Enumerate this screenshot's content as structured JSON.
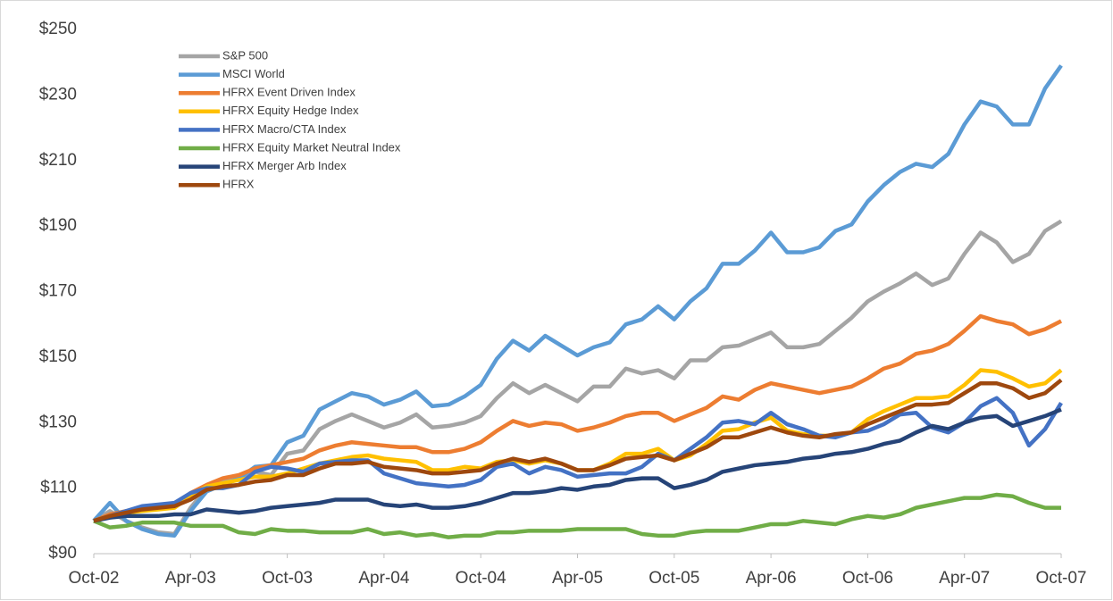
{
  "chart_data": {
    "type": "line",
    "categories": [
      "Oct-02",
      null,
      null,
      null,
      null,
      null,
      "Apr-03",
      null,
      null,
      null,
      null,
      null,
      "Oct-03",
      null,
      null,
      null,
      null,
      null,
      "Apr-04",
      null,
      null,
      null,
      null,
      null,
      "Oct-04",
      null,
      null,
      null,
      null,
      null,
      "Apr-05",
      null,
      null,
      null,
      null,
      null,
      "Oct-05",
      null,
      null,
      null,
      null,
      null,
      "Apr-06",
      null,
      null,
      null,
      null,
      null,
      "Oct-06",
      null,
      null,
      null,
      null,
      null,
      "Apr-07",
      null,
      null,
      null,
      null,
      null,
      "Oct-07"
    ],
    "ylim": [
      90,
      250
    ],
    "yticks": [
      {
        "value": 90,
        "label": "$90"
      },
      {
        "value": 110,
        "label": "$110"
      },
      {
        "value": 130,
        "label": "$130"
      },
      {
        "value": 150,
        "label": "$150"
      },
      {
        "value": 170,
        "label": "$170"
      },
      {
        "value": 190,
        "label": "$190"
      },
      {
        "value": 210,
        "label": "$210"
      },
      {
        "value": 230,
        "label": "$230"
      },
      {
        "value": 250,
        "label": "$250"
      }
    ],
    "grid": false,
    "legend": "upper left",
    "series": [
      {
        "name": "S&P 500",
        "color": "#a5a5a5",
        "values": [
          100,
          103,
          100,
          98,
          96.5,
          96,
          104,
          110,
          112,
          113,
          115,
          114,
          120.5,
          121.5,
          128,
          130.5,
          132.5,
          130.5,
          128.5,
          130,
          132.5,
          128.5,
          129,
          130,
          132,
          137.5,
          142,
          139,
          141.5,
          139,
          136.5,
          141,
          141,
          146.5,
          145,
          146,
          143.5,
          149,
          149,
          153,
          153.5,
          155.5,
          157.5,
          153,
          153,
          154,
          158,
          162,
          167,
          170,
          172.5,
          175.5,
          172,
          174,
          181.5,
          188,
          185,
          179,
          181.5,
          188.5,
          191.5
        ]
      },
      {
        "name": "MSCI World",
        "color": "#5b9bd5",
        "values": [
          100,
          105.5,
          100,
          97.5,
          96,
          95.5,
          103,
          109,
          111,
          113,
          116.5,
          117,
          124,
          126,
          134,
          136.5,
          139,
          138,
          135.5,
          137,
          139.5,
          135,
          135.5,
          138,
          141.5,
          149.5,
          155,
          152,
          156.5,
          153.5,
          150.5,
          153,
          154.5,
          160,
          161.5,
          165.5,
          161.5,
          167,
          171,
          178.5,
          178.5,
          182.5,
          188,
          182,
          182,
          183.5,
          188.5,
          190.5,
          197.5,
          202.5,
          206.5,
          209,
          208,
          212,
          221,
          228,
          226.5,
          221,
          221,
          232,
          239
        ]
      },
      {
        "name": "HFRX Event Driven Index",
        "color": "#ed7d31",
        "values": [
          100,
          102,
          103,
          103.5,
          104,
          104.5,
          108.5,
          111,
          113,
          114,
          116,
          117,
          118,
          119,
          121.5,
          123,
          124,
          123.5,
          123,
          122.5,
          122.5,
          121,
          121,
          122,
          124,
          127.5,
          130.5,
          129,
          130,
          129.5,
          127.5,
          128.5,
          130,
          132,
          133,
          133,
          130.5,
          132.5,
          134.5,
          138,
          137,
          140,
          142,
          141,
          140,
          139,
          140,
          141,
          143.5,
          146.5,
          148,
          151,
          152,
          154,
          158,
          162.5,
          161,
          160,
          157,
          158.5,
          161
        ]
      },
      {
        "name": "HFRX Equity Hedge Index",
        "color": "#ffc000",
        "values": [
          100,
          101.5,
          102.5,
          103,
          103.5,
          104,
          107.5,
          110.5,
          111.5,
          112.5,
          113.5,
          113.5,
          114.5,
          116,
          117.5,
          118.5,
          119.5,
          120,
          119,
          118.5,
          118,
          115.5,
          115.5,
          116.5,
          116,
          118,
          118.5,
          117.5,
          118.5,
          117.5,
          115.5,
          115.5,
          117.5,
          120.5,
          120.5,
          122,
          118.5,
          120,
          123.5,
          127.5,
          128,
          130,
          131.5,
          127.5,
          126.5,
          126,
          126,
          127,
          131,
          133.5,
          135.5,
          137.5,
          137.5,
          138,
          141.5,
          146,
          145.5,
          143.5,
          141,
          142,
          146
        ]
      },
      {
        "name": "HFRX Macro/CTA Index",
        "color": "#4472c4",
        "values": [
          100,
          101.5,
          103,
          104.5,
          105,
          105.5,
          108.5,
          110,
          110,
          111,
          115,
          116.5,
          116,
          115,
          117.5,
          118,
          118.5,
          118.5,
          114.5,
          113,
          111.5,
          111,
          110.5,
          111,
          112.5,
          116.5,
          117.5,
          114.5,
          116.5,
          115.5,
          113.5,
          114,
          114.5,
          114.5,
          116.5,
          120.5,
          118.5,
          122,
          125.5,
          130,
          130.5,
          129.5,
          133,
          129.5,
          128,
          126,
          125.5,
          127,
          127.5,
          129.5,
          132.5,
          133,
          128.5,
          127,
          130,
          135,
          137.5,
          133,
          123,
          128,
          136
        ]
      },
      {
        "name": "HFRX Equity Market Neutral Index",
        "color": "#70ad47",
        "values": [
          100,
          98,
          98.5,
          99.5,
          99.5,
          99.5,
          98.5,
          98.5,
          98.5,
          96.5,
          96,
          97.5,
          97,
          97,
          96.5,
          96.5,
          96.5,
          97.5,
          96,
          96.5,
          95.5,
          96,
          95,
          95.5,
          95.5,
          96.5,
          96.5,
          97,
          97,
          97,
          97.5,
          97.5,
          97.5,
          97.5,
          96,
          95.5,
          95.5,
          96.5,
          97,
          97,
          97,
          98,
          99,
          99,
          100,
          99.5,
          99,
          100.5,
          101.5,
          101,
          102,
          104,
          105,
          106,
          107,
          107,
          108,
          107.5,
          105.5,
          104,
          104
        ]
      },
      {
        "name": "HFRX Merger Arb Index",
        "color": "#264478",
        "values": [
          100,
          101,
          101.5,
          101.5,
          101.5,
          102,
          102,
          103.5,
          103,
          102.5,
          103,
          104,
          104.5,
          105,
          105.5,
          106.5,
          106.5,
          106.5,
          105,
          104.5,
          105,
          104,
          104,
          104.5,
          105.5,
          107,
          108.5,
          108.5,
          109,
          110,
          109.5,
          110.5,
          111,
          112.5,
          113,
          113,
          110,
          111,
          112.5,
          115,
          116,
          117,
          117.5,
          118,
          119,
          119.5,
          120.5,
          121,
          122,
          123.5,
          124.5,
          127,
          129,
          128,
          130,
          131.5,
          132,
          129,
          130.5,
          132,
          134
        ]
      },
      {
        "name": "HFRX",
        "color": "#9e480e",
        "values": [
          100,
          101.5,
          102.5,
          103.5,
          104,
          104.5,
          106.5,
          109.5,
          110.5,
          111,
          112,
          112.5,
          114,
          114,
          116,
          117.5,
          117.5,
          118,
          116.5,
          116,
          115.5,
          114.5,
          114.5,
          115,
          115.5,
          117.5,
          119,
          118,
          119,
          117.5,
          115.5,
          115.5,
          117,
          119,
          119.5,
          120,
          118.5,
          120.5,
          122.5,
          125.5,
          125.5,
          127,
          128.5,
          127,
          126,
          125.5,
          126.5,
          127,
          129.5,
          131.5,
          133.5,
          135.5,
          135.5,
          136,
          139,
          142,
          142,
          140.5,
          137.5,
          139,
          143
        ]
      }
    ]
  }
}
